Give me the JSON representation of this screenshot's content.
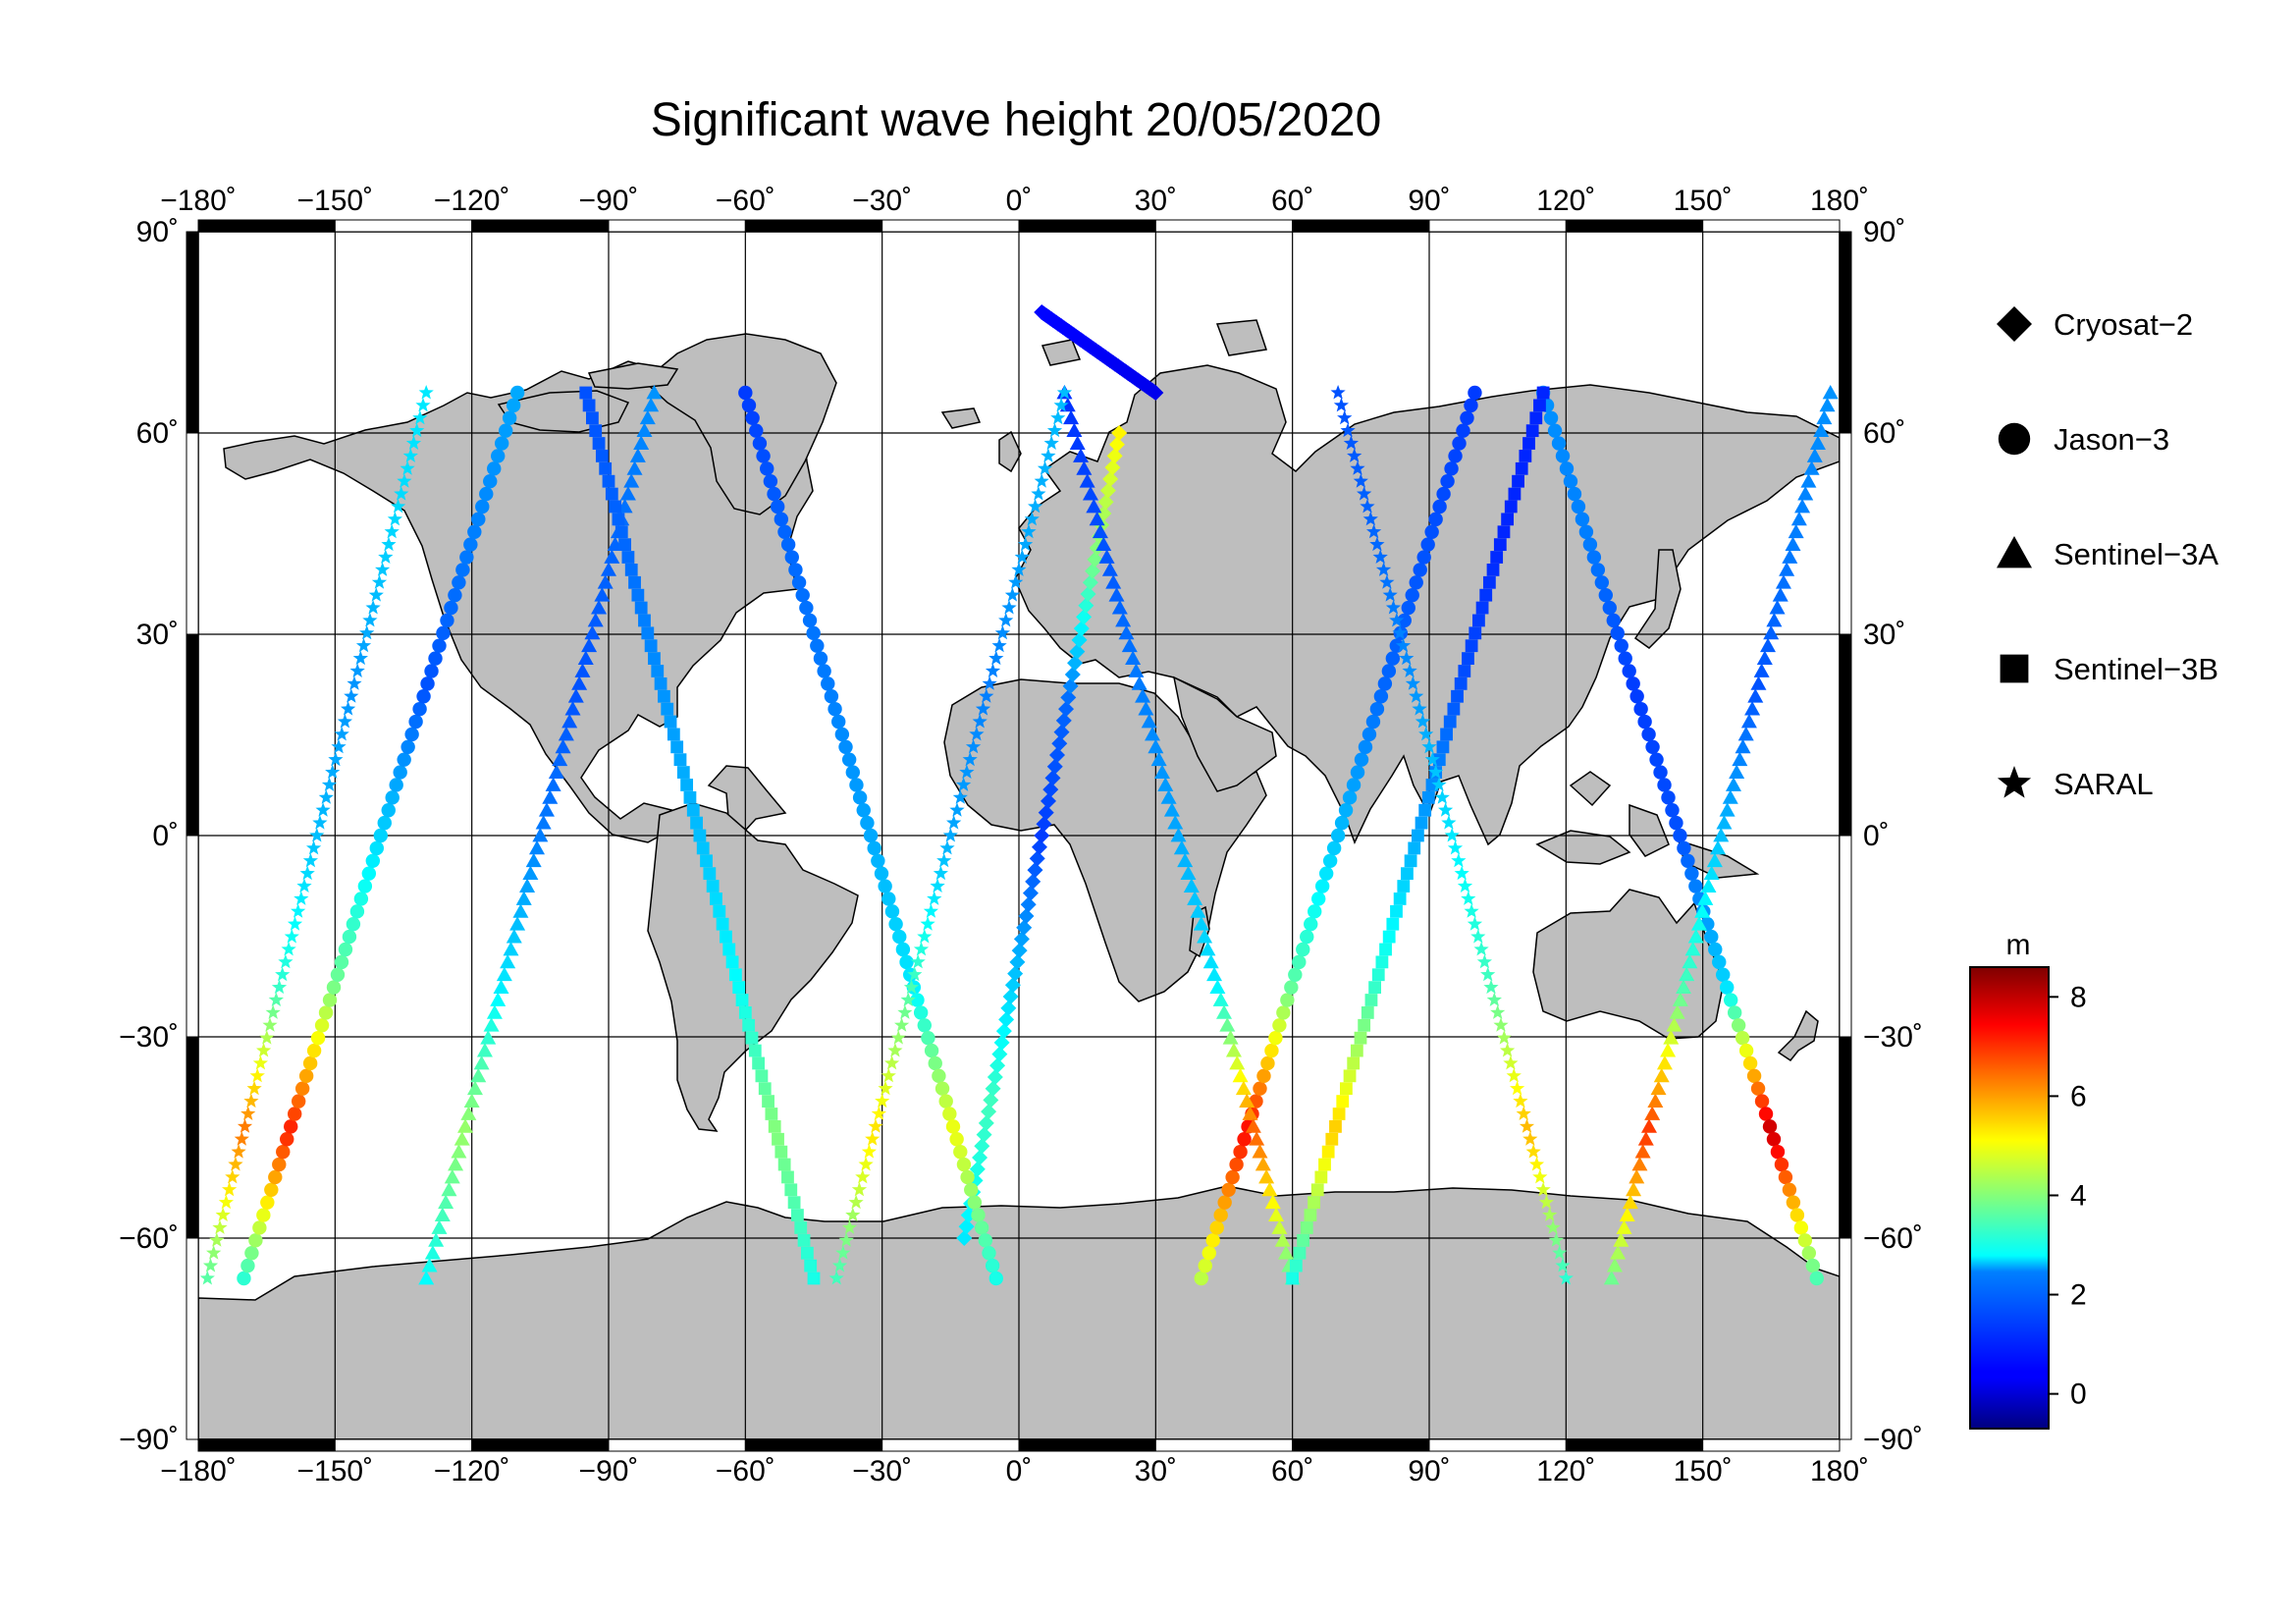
{
  "title": "Significant wave height 20/05/2020",
  "map": {
    "projection": "equirectangular",
    "lon_range": [
      -180,
      180
    ],
    "lat_range": [
      -90,
      90
    ],
    "grid_step": 30,
    "ocean_color": "#ffffff",
    "land_color": "#bebebe",
    "coastline_color": "#000000",
    "lon_ticks": [
      "−180˚",
      "−150˚",
      "−120˚",
      "−90˚",
      "−60˚",
      "−30˚",
      "0˚",
      "30˚",
      "60˚",
      "90˚",
      "120˚",
      "150˚",
      "180˚"
    ],
    "lat_ticks": [
      "90˚",
      "60˚",
      "30˚",
      "0˚",
      "−30˚",
      "−60˚",
      "−90˚"
    ]
  },
  "legend": {
    "items": [
      {
        "label": "Cryosat−2",
        "marker": "diamond"
      },
      {
        "label": "Jason−3",
        "marker": "circle"
      },
      {
        "label": "Sentinel−3A",
        "marker": "triangle"
      },
      {
        "label": "Sentinel−3B",
        "marker": "square"
      },
      {
        "label": "SARAL",
        "marker": "star"
      }
    ]
  },
  "colorbar": {
    "unit": "m",
    "range": [
      -0.7,
      8.6
    ],
    "ticks": [
      "0",
      "2",
      "4",
      "6",
      "8"
    ],
    "colormap": "jet"
  },
  "chart_data": {
    "type": "scatter",
    "title": "Significant wave height 20/05/2020",
    "value_name": "m",
    "series": [
      {
        "name": "Cryosat−2",
        "marker": "diamond",
        "tracks": [
          {
            "lat_start": -60,
            "lat_end": 60,
            "lon_start": -12,
            "lon_end": 22,
            "hs": [
              2.6,
              3.4,
              2.2,
              1.0,
              1.4,
              3.8,
              5.2
            ]
          },
          {
            "lat_start": 78,
            "lat_end": 66,
            "lon_start": 5,
            "lon_end": 30,
            "hs": [
              0.5,
              0.4,
              0.3
            ]
          }
        ]
      },
      {
        "name": "Jason−3",
        "marker": "circle",
        "tracks": [
          {
            "lat_start": -66,
            "lat_end": 66,
            "lon_start": -170,
            "lon_end": -110,
            "hs": [
              3.2,
              7.2,
              3.8,
              2.4,
              1.2,
              1.6,
              2.0
            ]
          },
          {
            "lat_start": 66,
            "lat_end": -66,
            "lon_start": -60,
            "lon_end": -5,
            "hs": [
              1.0,
              1.4,
              1.6,
              2.0,
              2.6,
              5.0,
              3.0
            ]
          },
          {
            "lat_start": -66,
            "lat_end": 66,
            "lon_start": 40,
            "lon_end": 100,
            "hs": [
              4.5,
              7.4,
              3.6,
              2.2,
              1.4,
              1.2,
              1.0
            ]
          },
          {
            "lat_start": 66,
            "lat_end": -66,
            "lon_start": 115,
            "lon_end": 175,
            "hs": [
              1.8,
              1.6,
              1.0,
              1.2,
              2.4,
              8.0,
              3.5
            ]
          }
        ]
      },
      {
        "name": "Sentinel−3A",
        "marker": "triangle",
        "tracks": [
          {
            "lat_start": -66,
            "lat_end": 66,
            "lon_start": -130,
            "lon_end": -80,
            "hs": [
              2.8,
              4.2,
              2.6,
              1.6,
              1.2,
              1.4,
              1.8
            ]
          },
          {
            "lat_start": 66,
            "lat_end": -66,
            "lon_start": 10,
            "lon_end": 60,
            "hs": [
              0.9,
              1.2,
              1.6,
              2.0,
              2.6,
              6.6,
              3.6
            ]
          },
          {
            "lat_start": -66,
            "lat_end": 66,
            "lon_start": 130,
            "lon_end": 178,
            "hs": [
              3.8,
              7.0,
              3.4,
              2.2,
              1.2,
              1.6,
              1.8
            ]
          }
        ]
      },
      {
        "name": "Sentinel−3B",
        "marker": "square",
        "tracks": [
          {
            "lat_start": 66,
            "lat_end": -66,
            "lon_start": -95,
            "lon_end": -45,
            "hs": [
              1.2,
              1.4,
              1.8,
              2.2,
              2.8,
              4.0,
              3.0
            ]
          },
          {
            "lat_start": -66,
            "lat_end": 66,
            "lon_start": 60,
            "lon_end": 115,
            "hs": [
              3.0,
              5.6,
              3.2,
              2.0,
              1.2,
              0.8,
              0.8
            ]
          }
        ]
      },
      {
        "name": "SARAL",
        "marker": "star",
        "tracks": [
          {
            "lat_start": -66,
            "lat_end": 66,
            "lon_start": -178,
            "lon_end": -130,
            "hs": [
              3.6,
              6.4,
              3.2,
              2.2,
              1.8,
              2.4,
              2.6
            ]
          },
          {
            "lat_start": -66,
            "lat_end": 66,
            "lon_start": -40,
            "lon_end": 10,
            "hs": [
              3.4,
              5.4,
              3.4,
              2.0,
              1.6,
              2.0,
              2.2
            ]
          },
          {
            "lat_start": 66,
            "lat_end": -66,
            "lon_start": 70,
            "lon_end": 120,
            "hs": [
              1.2,
              1.4,
              1.8,
              2.6,
              3.4,
              5.8,
              3.2
            ]
          }
        ]
      }
    ]
  }
}
